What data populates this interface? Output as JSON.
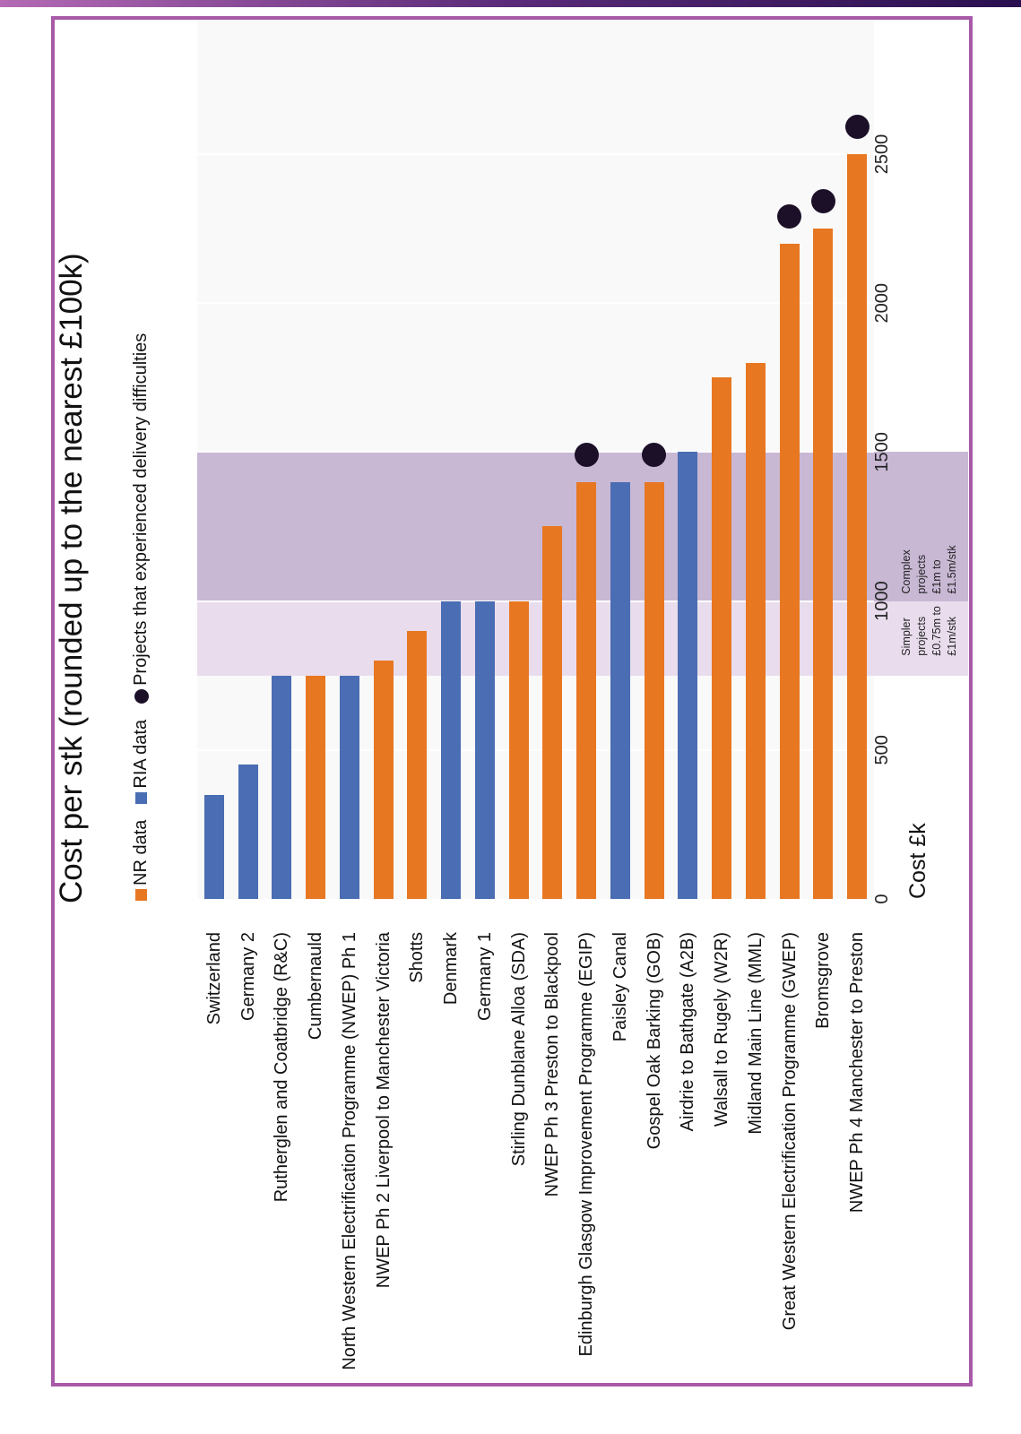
{
  "chart_data": {
    "type": "bar",
    "orientation": "horizontal, page rotated 90° counter-clockwise",
    "title": "Cost per stk (rounded up to the nearest £100k)",
    "xlabel": "Cost £k",
    "xlim": [
      0,
      3000
    ],
    "ticks": [
      0,
      500,
      1000,
      1500,
      2000,
      2500
    ],
    "grid": true,
    "legend": {
      "placement": "top",
      "items": [
        {
          "label": "NR data",
          "color": "#e87722"
        },
        {
          "label": "RIA data",
          "color": "#4a6db3"
        },
        {
          "label": "Projects that experienced delivery difficulties",
          "color": "#1c1028"
        }
      ]
    },
    "bands": [
      {
        "from": 750,
        "to": 1000,
        "color": "#e9dded",
        "label": [
          "Simpler",
          "projects",
          "£0.75m to",
          "£1m/stk"
        ]
      },
      {
        "from": 1000,
        "to": 1500,
        "color": "#c8b8d4",
        "label": [
          "Complex",
          "projects",
          "£1m to",
          "£1.5m/stk"
        ]
      }
    ],
    "categories": [
      "Switzerland",
      "Germany 2",
      "Rutherglen and Coatbridge (R&C)",
      "Cumbernauld",
      "North Western Electrification Programme (NWEP) Ph 1",
      "NWEP Ph 2 Liverpool to Manchester Victoria",
      "Shotts",
      "Denmark",
      "Germany 1",
      "Stirling Dunblane Alloa (SDA)",
      "NWEP Ph 3 Preston to Blackpool",
      "Edinburgh Glasgow Improvement Programme (EGIP)",
      "Paisley Canal",
      "Gospel Oak Barking (GOB)",
      "Airdrie to Bathgate (A2B)",
      "Walsall to Rugely (W2R)",
      "Midland Main Line (MML)",
      "Great Western Electrification Programme (GWEP)",
      "Bromsgrove",
      "NWEP Ph 4 Manchester to Preston"
    ],
    "values": [
      350,
      450,
      750,
      750,
      750,
      800,
      900,
      1000,
      1000,
      1000,
      1250,
      1400,
      1400,
      1400,
      1500,
      1750,
      1800,
      2200,
      2250,
      2500
    ],
    "source": [
      "RIA",
      "RIA",
      "RIA",
      "NR",
      "RIA",
      "NR",
      "NR",
      "RIA",
      "RIA",
      "NR",
      "NR",
      "NR",
      "RIA",
      "NR",
      "RIA",
      "NR",
      "NR",
      "NR",
      "NR",
      "NR"
    ],
    "delivery_difficulties": [
      false,
      false,
      false,
      false,
      false,
      false,
      false,
      false,
      false,
      false,
      false,
      true,
      false,
      true,
      false,
      false,
      false,
      true,
      true,
      true
    ],
    "colors": {
      "NR": "#e87722",
      "RIA": "#4a6db3",
      "frame": "#a859a8"
    }
  }
}
